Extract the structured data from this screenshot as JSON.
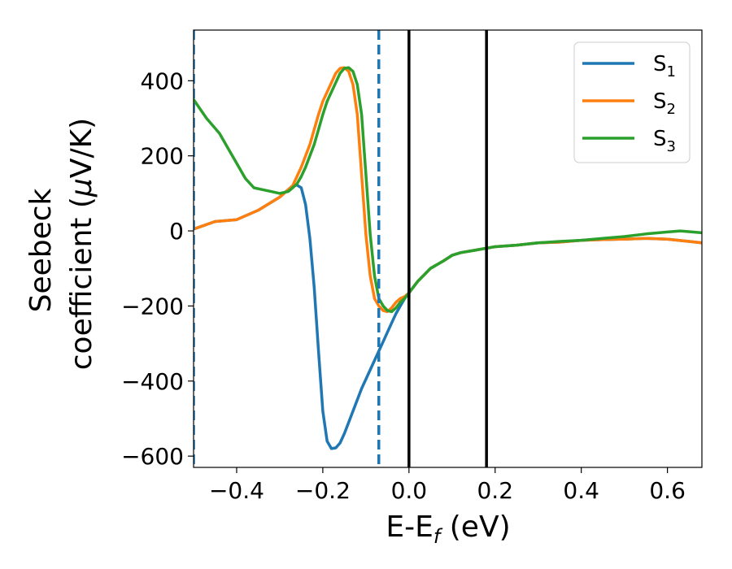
{
  "chart_data": {
    "type": "line",
    "title": "",
    "xlabel": {
      "main": "E-E",
      "sub": "f",
      "tail": " (eV)"
    },
    "ylabel": {
      "line1": "Seebeck",
      "line2_a": "coefficient  (",
      "line2_mu": "μ",
      "line2_b": "V/K)"
    },
    "xlim": [
      -0.5,
      0.68
    ],
    "ylim": [
      -630,
      535
    ],
    "xticks": [
      -0.4,
      -0.2,
      0.0,
      0.2,
      0.4,
      0.6
    ],
    "xtick_labels": [
      "−0.4",
      "−0.2",
      "0.0",
      "0.2",
      "0.4",
      "0.6"
    ],
    "yticks": [
      -600,
      -400,
      -200,
      0,
      200,
      400
    ],
    "ytick_labels": [
      "−600",
      "−400",
      "−200",
      "0",
      "200",
      "400"
    ],
    "grid": false,
    "legend_position": "top-right",
    "vlines": [
      {
        "x": -0.5,
        "color": "#1f77b4",
        "style": "dashed"
      },
      {
        "x": -0.07,
        "color": "#1f77b4",
        "style": "dashed"
      },
      {
        "x": 0.0,
        "color": "#000000",
        "style": "solid"
      },
      {
        "x": 0.18,
        "color": "#000000",
        "style": "solid"
      }
    ],
    "series": [
      {
        "name": "S",
        "sub": "1",
        "color": "#1f77b4",
        "x": [
          -0.5,
          -0.45,
          -0.4,
          -0.35,
          -0.3,
          -0.27,
          -0.26,
          -0.25,
          -0.24,
          -0.23,
          -0.22,
          -0.21,
          -0.2,
          -0.19,
          -0.18,
          -0.17,
          -0.16,
          -0.15,
          -0.14,
          -0.13,
          -0.12,
          -0.11,
          -0.1,
          -0.09,
          -0.08,
          -0.07,
          -0.06,
          -0.05,
          -0.04,
          -0.03,
          -0.02,
          -0.01,
          0.0,
          0.02,
          0.05,
          0.08,
          0.1,
          0.12,
          0.15,
          0.18,
          0.2,
          0.25,
          0.3,
          0.35,
          0.4,
          0.45,
          0.5,
          0.55,
          0.6,
          0.65,
          0.68
        ],
        "y": [
          5,
          25,
          30,
          55,
          90,
          120,
          122,
          115,
          70,
          -20,
          -150,
          -320,
          -480,
          -560,
          -580,
          -578,
          -565,
          -540,
          -510,
          -480,
          -450,
          -420,
          -395,
          -370,
          -345,
          -320,
          -295,
          -270,
          -245,
          -220,
          -200,
          -180,
          -165,
          -135,
          -100,
          -80,
          -65,
          -58,
          -52,
          -46,
          -42,
          -38,
          -32,
          -30,
          -25,
          -23,
          -22,
          -20,
          -22,
          -28,
          -32
        ]
      },
      {
        "name": "S",
        "sub": "2",
        "color": "#ff7f0e",
        "x": [
          -0.5,
          -0.45,
          -0.4,
          -0.35,
          -0.3,
          -0.27,
          -0.26,
          -0.25,
          -0.24,
          -0.23,
          -0.22,
          -0.21,
          -0.2,
          -0.19,
          -0.18,
          -0.17,
          -0.16,
          -0.15,
          -0.14,
          -0.13,
          -0.12,
          -0.11,
          -0.1,
          -0.09,
          -0.08,
          -0.07,
          -0.06,
          -0.05,
          -0.04,
          -0.03,
          -0.02,
          -0.01,
          0.0,
          0.02,
          0.05,
          0.08,
          0.1,
          0.12,
          0.15,
          0.18,
          0.2,
          0.25,
          0.3,
          0.35,
          0.4,
          0.45,
          0.5,
          0.55,
          0.6,
          0.65,
          0.68
        ],
        "y": [
          5,
          25,
          30,
          55,
          90,
          120,
          145,
          170,
          200,
          230,
          270,
          310,
          345,
          370,
          395,
          420,
          433,
          435,
          425,
          390,
          310,
          150,
          -10,
          -120,
          -180,
          -200,
          -212,
          -215,
          -205,
          -190,
          -180,
          -175,
          -165,
          -135,
          -100,
          -80,
          -65,
          -58,
          -52,
          -46,
          -42,
          -38,
          -32,
          -30,
          -25,
          -23,
          -22,
          -20,
          -22,
          -28,
          -32
        ]
      },
      {
        "name": "S",
        "sub": "3",
        "color": "#2ca02c",
        "x": [
          -0.5,
          -0.47,
          -0.44,
          -0.42,
          -0.4,
          -0.38,
          -0.36,
          -0.34,
          -0.32,
          -0.3,
          -0.28,
          -0.27,
          -0.26,
          -0.25,
          -0.24,
          -0.23,
          -0.22,
          -0.21,
          -0.2,
          -0.19,
          -0.18,
          -0.17,
          -0.16,
          -0.15,
          -0.14,
          -0.13,
          -0.12,
          -0.11,
          -0.1,
          -0.09,
          -0.08,
          -0.07,
          -0.06,
          -0.05,
          -0.04,
          -0.03,
          -0.02,
          -0.01,
          0.0,
          0.02,
          0.05,
          0.08,
          0.1,
          0.12,
          0.15,
          0.18,
          0.2,
          0.25,
          0.3,
          0.35,
          0.4,
          0.45,
          0.5,
          0.55,
          0.6,
          0.63,
          0.65,
          0.68
        ],
        "y": [
          350,
          300,
          260,
          220,
          180,
          140,
          115,
          110,
          105,
          100,
          105,
          115,
          125,
          145,
          170,
          200,
          230,
          270,
          310,
          345,
          370,
          395,
          420,
          433,
          435,
          425,
          390,
          310,
          150,
          -10,
          -120,
          -180,
          -200,
          -212,
          -215,
          -205,
          -190,
          -180,
          -165,
          -135,
          -100,
          -80,
          -65,
          -58,
          -52,
          -46,
          -42,
          -38,
          -32,
          -28,
          -25,
          -20,
          -15,
          -8,
          -3,
          0,
          -2,
          -5
        ]
      }
    ]
  }
}
